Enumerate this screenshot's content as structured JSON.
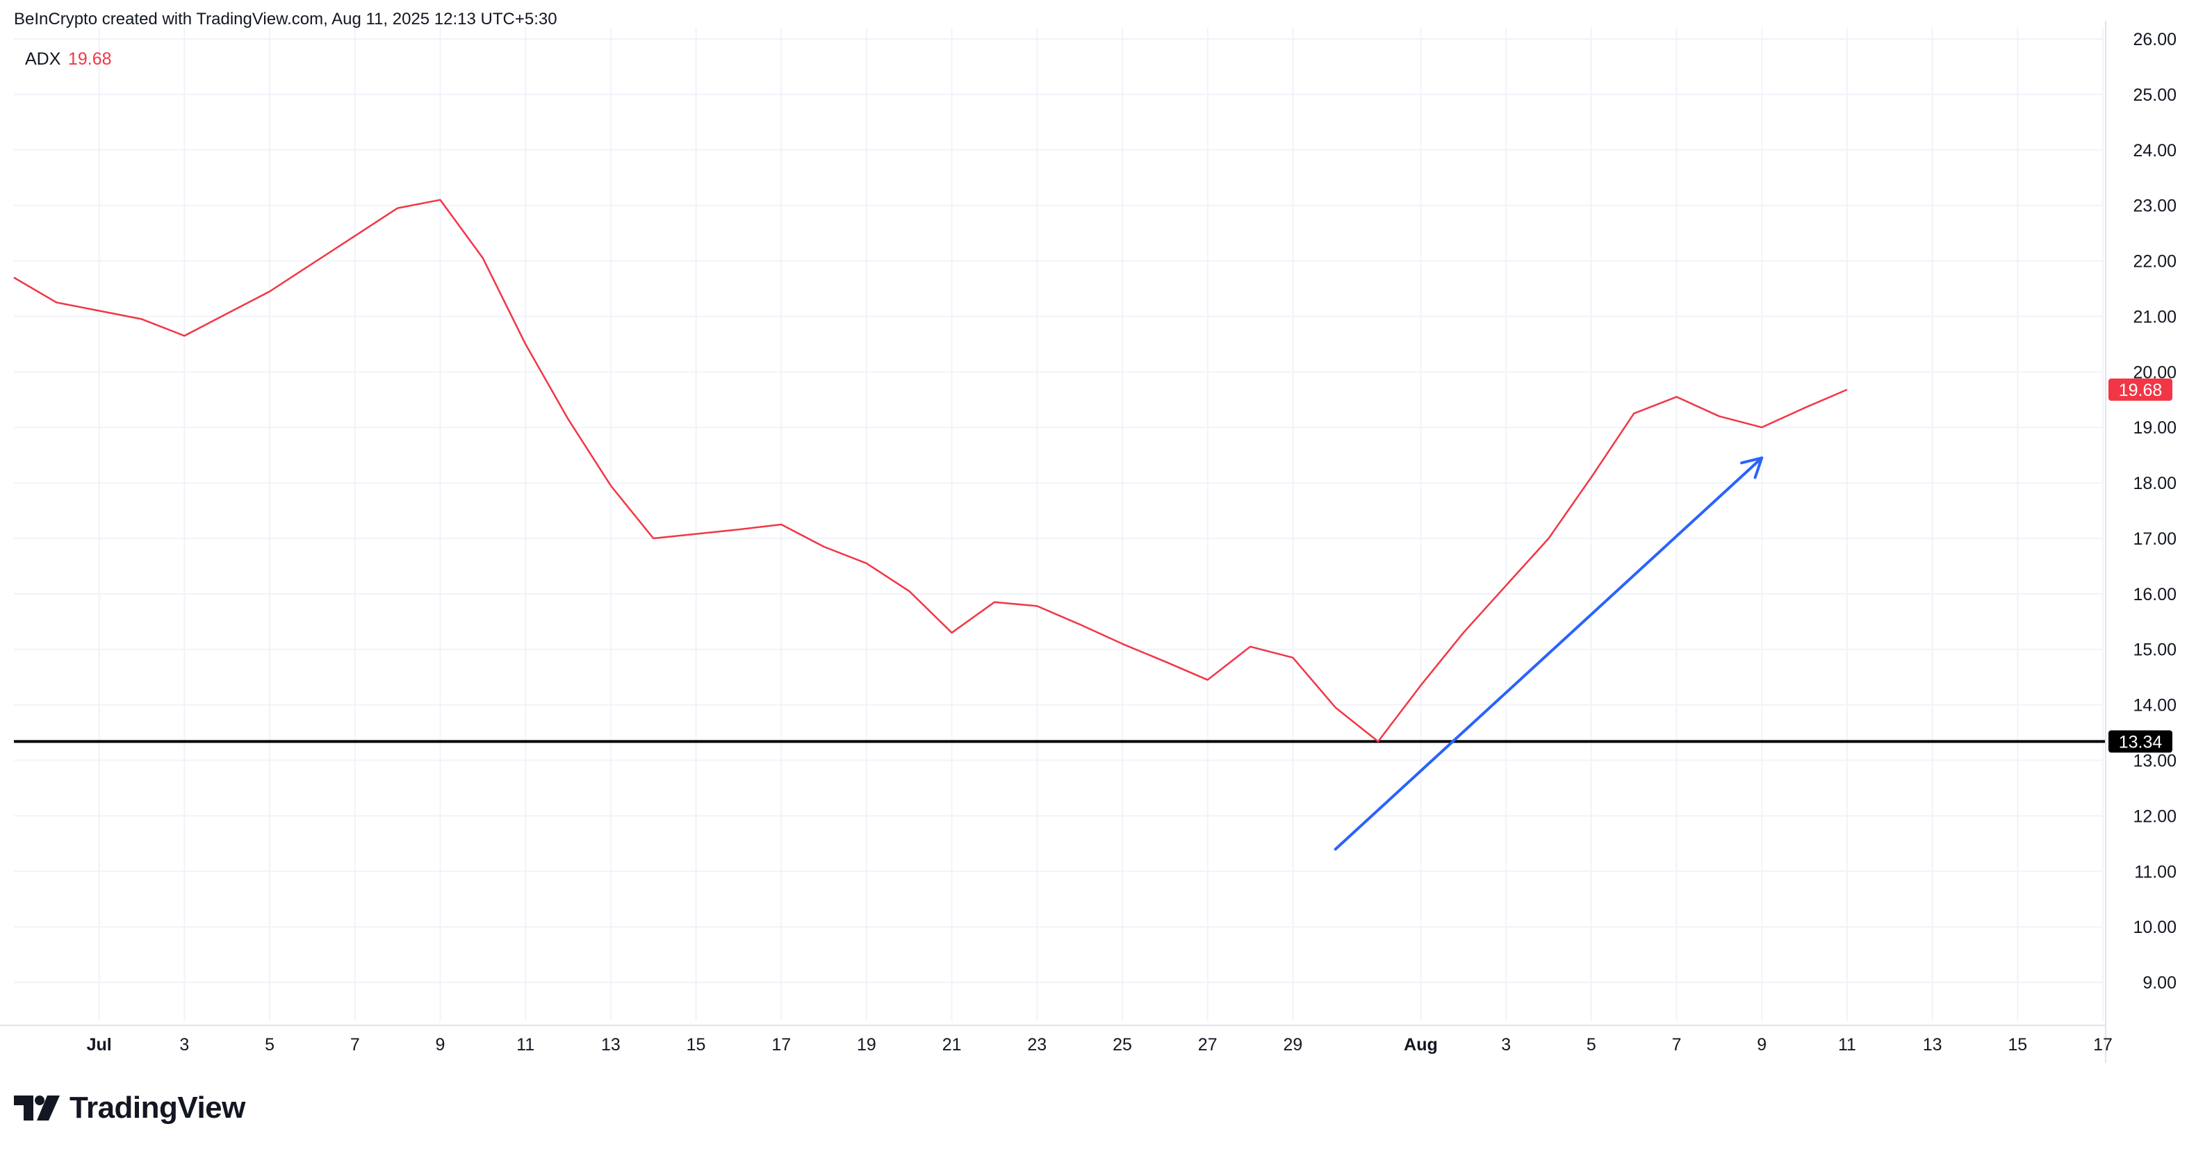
{
  "header": {
    "attribution": "BeInCrypto created with TradingView.com, Aug 11, 2025 12:13 UTC+5:30"
  },
  "legend": {
    "name": "ADX",
    "value": "19.68"
  },
  "footer": {
    "brand": "TradingView"
  },
  "colors": {
    "adx": "#f23645",
    "arrow": "#2962ff",
    "support": "#000000",
    "grid": "#f0f3fa",
    "axis_text": "#131722"
  },
  "chart_data": {
    "type": "line",
    "ylim": [
      8.3,
      26.2
    ],
    "y_ticks": [
      "9.00",
      "10.00",
      "11.00",
      "12.00",
      "13.00",
      "14.00",
      "15.00",
      "16.00",
      "17.00",
      "18.00",
      "19.00",
      "20.00",
      "21.00",
      "22.00",
      "23.00",
      "24.00",
      "25.00",
      "26.00"
    ],
    "x_ticks": [
      {
        "label": "Jul",
        "date": "2025-07-01",
        "bold": true
      },
      {
        "label": "3",
        "date": "2025-07-03"
      },
      {
        "label": "5",
        "date": "2025-07-05"
      },
      {
        "label": "7",
        "date": "2025-07-07"
      },
      {
        "label": "9",
        "date": "2025-07-09"
      },
      {
        "label": "11",
        "date": "2025-07-11"
      },
      {
        "label": "13",
        "date": "2025-07-13"
      },
      {
        "label": "15",
        "date": "2025-07-15"
      },
      {
        "label": "17",
        "date": "2025-07-17"
      },
      {
        "label": "19",
        "date": "2025-07-19"
      },
      {
        "label": "21",
        "date": "2025-07-21"
      },
      {
        "label": "23",
        "date": "2025-07-23"
      },
      {
        "label": "25",
        "date": "2025-07-25"
      },
      {
        "label": "27",
        "date": "2025-07-27"
      },
      {
        "label": "29",
        "date": "2025-07-29"
      },
      {
        "label": "Aug",
        "date": "2025-08-01",
        "bold": true
      },
      {
        "label": "3",
        "date": "2025-08-03"
      },
      {
        "label": "5",
        "date": "2025-08-05"
      },
      {
        "label": "7",
        "date": "2025-08-07"
      },
      {
        "label": "9",
        "date": "2025-08-09"
      },
      {
        "label": "11",
        "date": "2025-08-11"
      },
      {
        "label": "13",
        "date": "2025-08-13"
      },
      {
        "label": "15",
        "date": "2025-08-15"
      },
      {
        "label": "17",
        "date": "2025-08-17"
      }
    ],
    "x_range": [
      "2025-06-29",
      "2025-08-17"
    ],
    "series": [
      {
        "points": [
          [
            "2025-06-29",
            21.7
          ],
          [
            "2025-06-30",
            21.25
          ],
          [
            "2025-07-01",
            21.1
          ],
          [
            "2025-07-02",
            20.95
          ],
          [
            "2025-07-03",
            20.65
          ],
          [
            "2025-07-04",
            21.05
          ],
          [
            "2025-07-05",
            21.45
          ],
          [
            "2025-07-06",
            21.95
          ],
          [
            "2025-07-07",
            22.45
          ],
          [
            "2025-07-08",
            22.95
          ],
          [
            "2025-07-09",
            23.1
          ],
          [
            "2025-07-10",
            22.05
          ],
          [
            "2025-07-11",
            20.5
          ],
          [
            "2025-07-12",
            19.15
          ],
          [
            "2025-07-13",
            17.95
          ],
          [
            "2025-07-14",
            17.0
          ],
          [
            "2025-07-15",
            17.08
          ],
          [
            "2025-07-16",
            17.16
          ],
          [
            "2025-07-17",
            17.25
          ],
          [
            "2025-07-18",
            16.85
          ],
          [
            "2025-07-19",
            16.55
          ],
          [
            "2025-07-20",
            16.05
          ],
          [
            "2025-07-21",
            15.3
          ],
          [
            "2025-07-22",
            15.85
          ],
          [
            "2025-07-23",
            15.78
          ],
          [
            "2025-07-24",
            15.45
          ],
          [
            "2025-07-25",
            15.1
          ],
          [
            "2025-07-26",
            14.78
          ],
          [
            "2025-07-27",
            14.45
          ],
          [
            "2025-07-28",
            15.05
          ],
          [
            "2025-07-29",
            14.85
          ],
          [
            "2025-07-30",
            13.95
          ],
          [
            "2025-07-31",
            13.34
          ],
          [
            "2025-08-01",
            14.35
          ],
          [
            "2025-08-02",
            15.3
          ],
          [
            "2025-08-03",
            16.15
          ],
          [
            "2025-08-04",
            17.0
          ],
          [
            "2025-08-05",
            18.1
          ],
          [
            "2025-08-06",
            19.25
          ],
          [
            "2025-08-07",
            19.55
          ],
          [
            "2025-08-08",
            19.2
          ],
          [
            "2025-08-09",
            19.0
          ],
          [
            "2025-08-10",
            19.35
          ],
          [
            "2025-08-11",
            19.68
          ]
        ]
      }
    ],
    "current_value_label": {
      "value": 19.68,
      "text": "19.68"
    },
    "support_line": {
      "value": 13.34,
      "text": "13.34"
    },
    "arrow": {
      "from": [
        "2025-07-30",
        11.4
      ],
      "to": [
        "2025-08-09",
        18.45
      ]
    },
    "grid": true
  }
}
